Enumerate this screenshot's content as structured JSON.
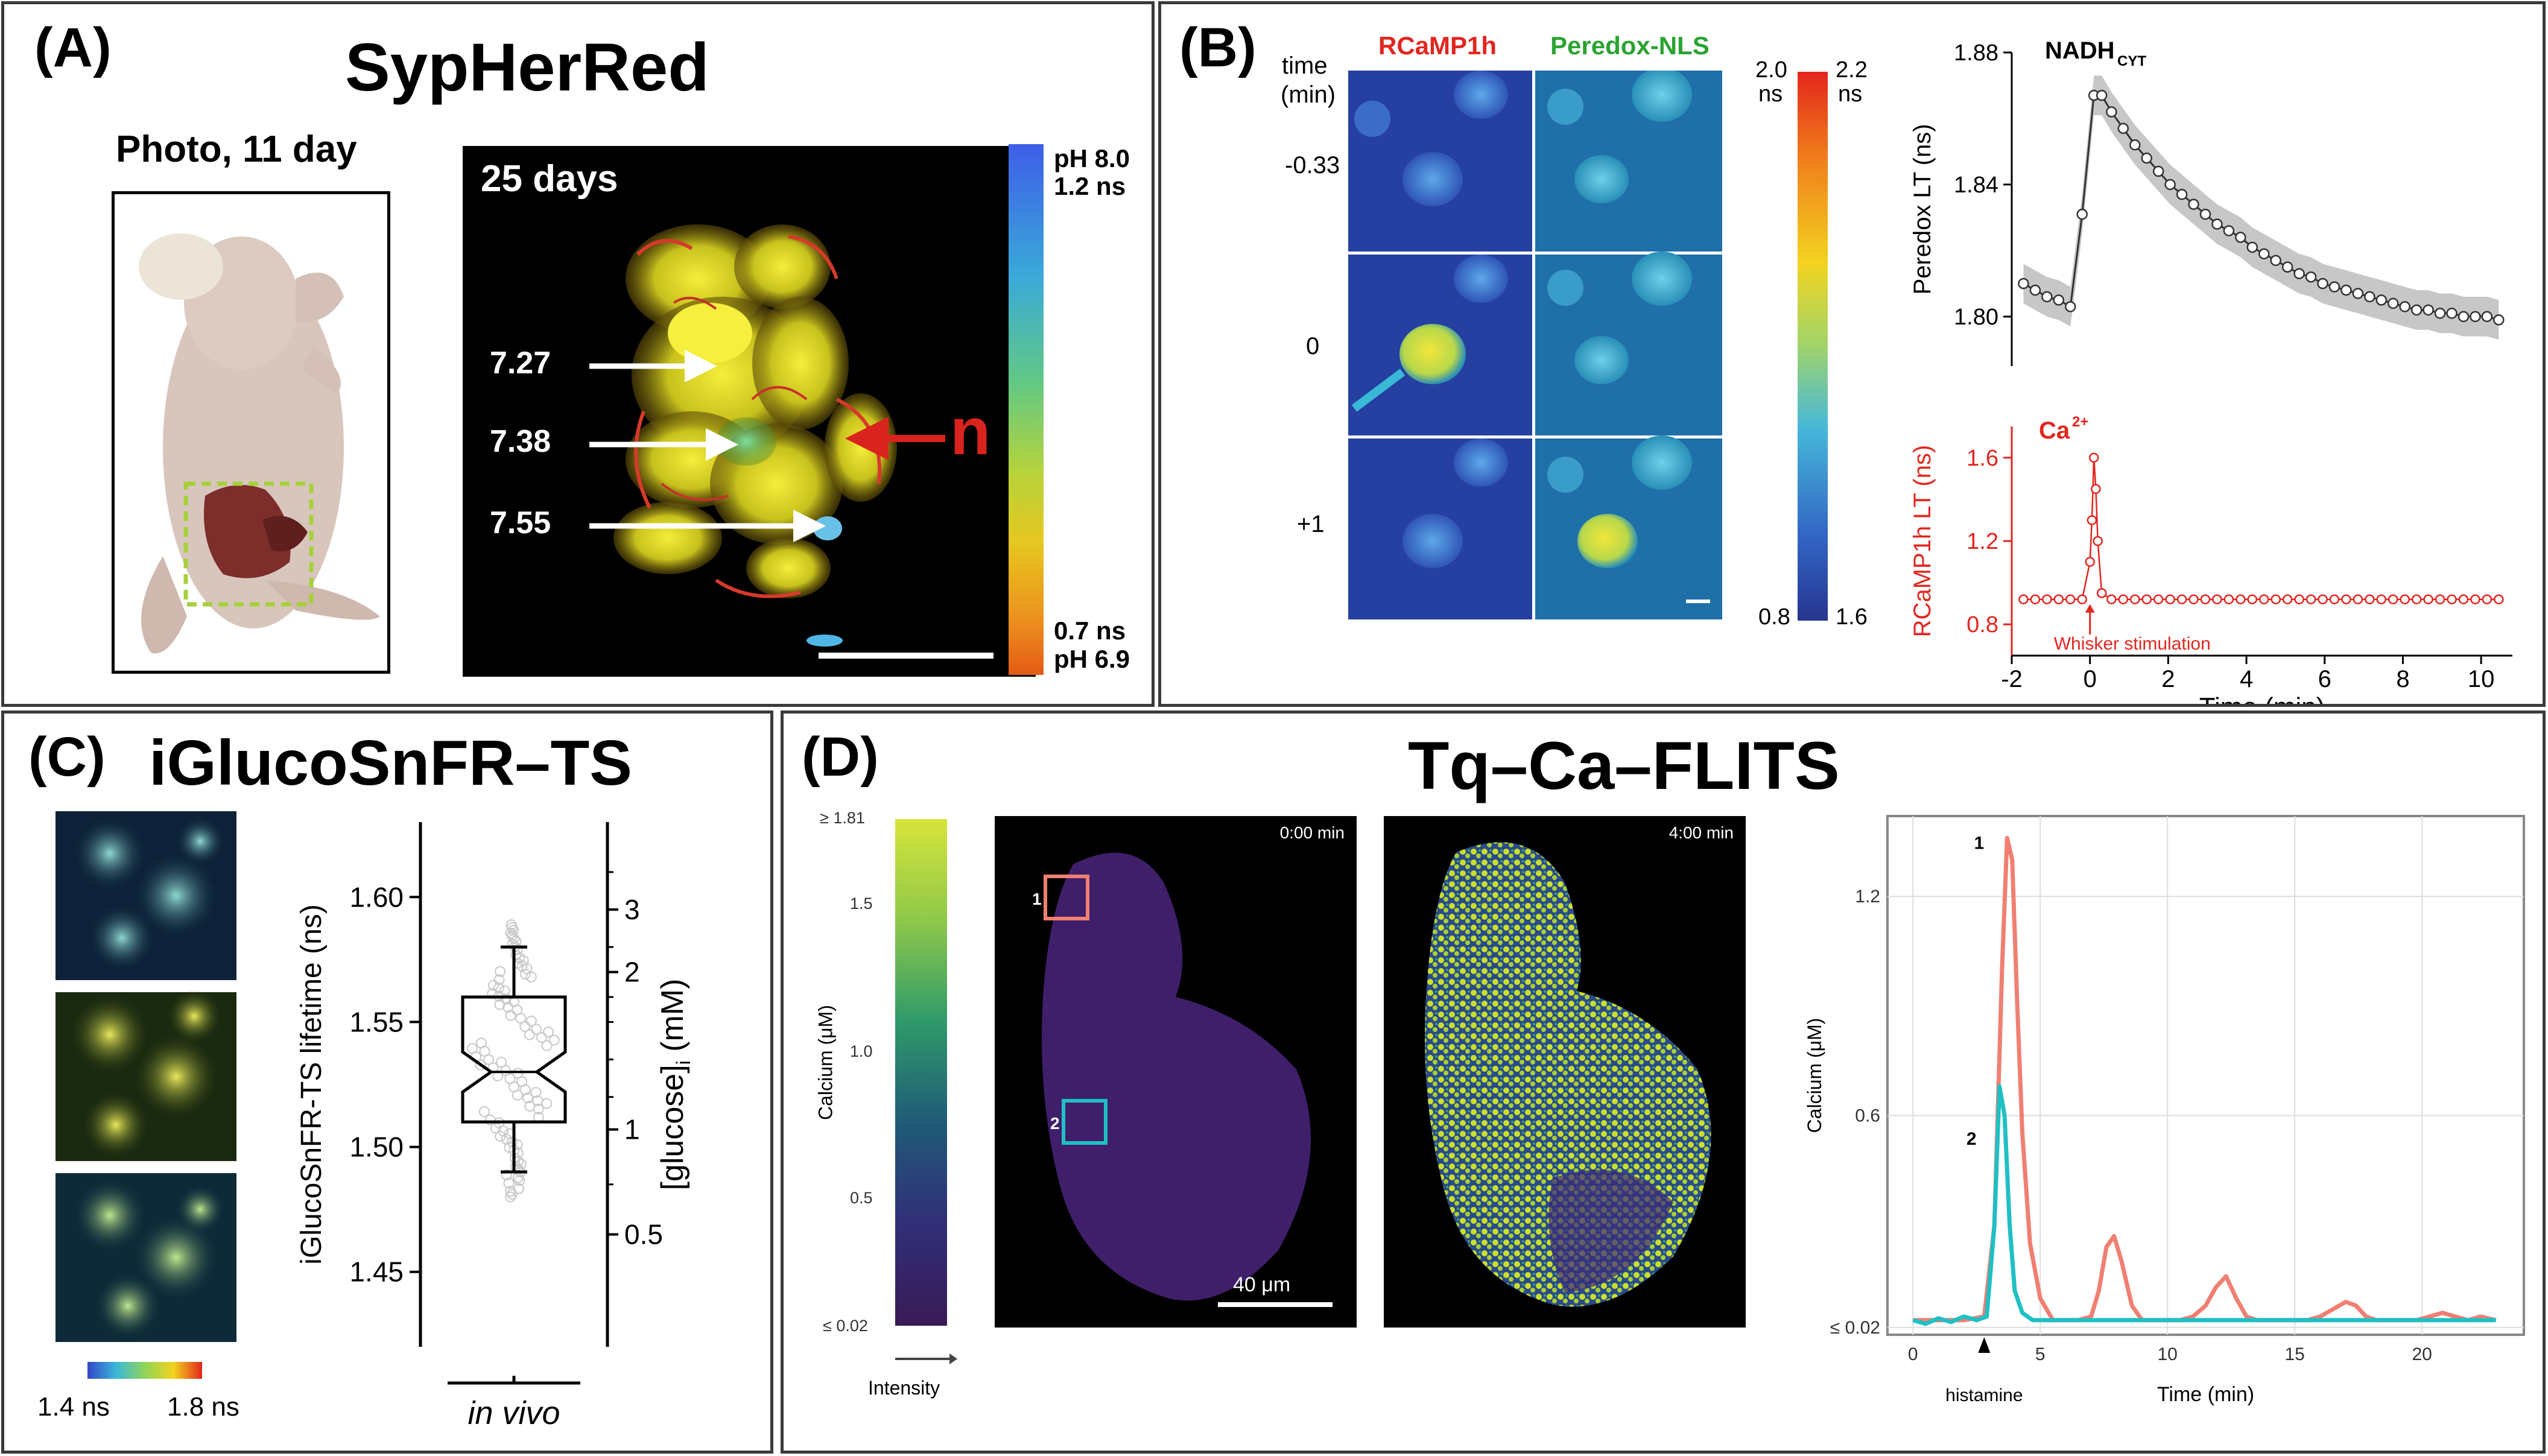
{
  "panelA": {
    "letter": "(A)",
    "title": "SypHerRed",
    "photo_caption": "Photo, 11 day",
    "image_label": "25 days",
    "values": [
      "7.27",
      "7.38",
      "7.55"
    ],
    "n_label": "n",
    "colorbar_top": [
      "pH 8.0",
      "1.2 ns"
    ],
    "colorbar_bottom": [
      "0.7 ns",
      "pH 6.9"
    ]
  },
  "panelB": {
    "letter": "(B)",
    "time_header": [
      "time",
      "(min)"
    ],
    "row_labels": [
      "-0.33",
      "0",
      "+1"
    ],
    "col_headers": [
      "RCaMP1h",
      "Peredox-NLS"
    ],
    "colorbar_top": [
      [
        "2.0",
        "ns"
      ],
      [
        "2.2",
        "ns"
      ]
    ],
    "colorbar_bottom": [
      "0.8",
      "1.6"
    ],
    "chart_data": [
      {
        "type": "line",
        "title": "NADH",
        "title_sub": "CYT",
        "ylabel": "Peredox LT (ns)",
        "yticks": [
          "1.80",
          "1.84",
          "1.88"
        ],
        "ylim": [
          1.785,
          1.88
        ],
        "xlim": [
          -2,
          10.8
        ],
        "x": [
          -1.7,
          -1.4,
          -1.1,
          -0.8,
          -0.5,
          -0.2,
          0.1,
          0.3,
          0.55,
          0.85,
          1.15,
          1.45,
          1.75,
          2.05,
          2.35,
          2.65,
          2.95,
          3.25,
          3.55,
          3.85,
          4.15,
          4.45,
          4.75,
          5.05,
          5.35,
          5.65,
          5.95,
          6.25,
          6.55,
          6.85,
          7.15,
          7.45,
          7.75,
          8.05,
          8.35,
          8.65,
          8.95,
          9.25,
          9.55,
          9.85,
          10.15,
          10.45
        ],
        "y": [
          1.81,
          1.808,
          1.806,
          1.805,
          1.803,
          1.831,
          1.867,
          1.867,
          1.862,
          1.857,
          1.852,
          1.848,
          1.844,
          1.84,
          1.837,
          1.834,
          1.831,
          1.828,
          1.826,
          1.824,
          1.821,
          1.819,
          1.817,
          1.815,
          1.813,
          1.812,
          1.81,
          1.809,
          1.808,
          1.807,
          1.806,
          1.805,
          1.804,
          1.803,
          1.802,
          1.802,
          1.801,
          1.801,
          1.8,
          1.8,
          1.8,
          1.799
        ]
      },
      {
        "type": "line",
        "title": "Ca",
        "title_sup": "2+",
        "ylabel": "RCaMP1h LT (ns)",
        "xlabel": "Time (min)",
        "yticks": [
          "0.8",
          "1.2",
          "1.6"
        ],
        "xticks": [
          "-2",
          "0",
          "2",
          "4",
          "6",
          "8",
          "10"
        ],
        "ylim": [
          0.65,
          1.75
        ],
        "xlim": [
          -2,
          10.8
        ],
        "annotation": "Whisker stimulation",
        "x": [
          -1.7,
          -1.4,
          -1.1,
          -0.8,
          -0.5,
          -0.2,
          0.0,
          0.05,
          0.1,
          0.15,
          0.2,
          0.3,
          0.55,
          0.85,
          1.15,
          1.45,
          1.75,
          2.05,
          2.35,
          2.65,
          2.95,
          3.25,
          3.55,
          3.85,
          4.15,
          4.45,
          4.75,
          5.05,
          5.35,
          5.65,
          5.95,
          6.25,
          6.55,
          6.85,
          7.15,
          7.45,
          7.75,
          8.05,
          8.35,
          8.65,
          8.95,
          9.25,
          9.55,
          9.85,
          10.15,
          10.45
        ],
        "y": [
          0.92,
          0.92,
          0.92,
          0.92,
          0.92,
          0.92,
          1.1,
          1.3,
          1.6,
          1.45,
          1.2,
          0.95,
          0.92,
          0.92,
          0.92,
          0.92,
          0.92,
          0.92,
          0.92,
          0.92,
          0.92,
          0.92,
          0.92,
          0.92,
          0.92,
          0.92,
          0.92,
          0.92,
          0.92,
          0.92,
          0.92,
          0.92,
          0.92,
          0.92,
          0.92,
          0.92,
          0.92,
          0.92,
          0.92,
          0.92,
          0.92,
          0.92,
          0.92,
          0.92,
          0.92,
          0.92
        ]
      }
    ]
  },
  "panelC": {
    "letter": "(C)",
    "title": "iGlucoSnFR–TS",
    "colorbar_labels": [
      "1.4 ns",
      "1.8 ns"
    ],
    "chart_data": {
      "type": "box",
      "ylabel": "iGlucoSnFR-TS lifetime (ns)",
      "ylabel2": "[glucose]",
      "ylabel2_sub": "i",
      "ylabel2_unit": "(mM)",
      "yticks": [
        "1.45",
        "1.50",
        "1.55",
        "1.60"
      ],
      "yticks2": [
        "0.5",
        "1",
        "2",
        "3"
      ],
      "ylim": [
        1.42,
        1.63
      ],
      "category": "in vivo",
      "whisker_low": 1.49,
      "q1": 1.51,
      "median": 1.53,
      "q3": 1.56,
      "whisker_high": 1.58,
      "notch": [
        1.522,
        1.538
      ]
    }
  },
  "panelD": {
    "letter": "(D)",
    "title": "Tq–Ca–FLITS",
    "colorbar_ticks": [
      "≥ 1.81",
      "1.5",
      "1.0",
      "0.5",
      "≤ 0.02"
    ],
    "colorbar_label": "Calcium (μM)",
    "intensity_label": "Intensity",
    "image1_time": "0:00 min",
    "image2_time": "4:00 min",
    "roi_labels": [
      "1",
      "2"
    ],
    "scalebar": "40 μm",
    "roi_colors": [
      "#f07f72",
      "#1fc0c4"
    ],
    "chart_data": {
      "type": "line",
      "xlabel": "Time (min)",
      "ylabel": "Calcium (μM)",
      "xticks": [
        "0",
        "5",
        "10",
        "15",
        "20"
      ],
      "yticks": [
        "≤ 0.02",
        "0.6",
        "1.2"
      ],
      "xlim": [
        -1,
        24
      ],
      "ylim": [
        0,
        1.42
      ],
      "annotation": "histamine",
      "series": [
        {
          "name": "1",
          "x": [
            0,
            1,
            2,
            2.8,
            3.2,
            3.5,
            3.7,
            3.9,
            4.1,
            4.3,
            4.6,
            5.0,
            5.5,
            6.0,
            6.5,
            7.0,
            7.3,
            7.6,
            7.9,
            8.2,
            8.6,
            9.0,
            9.5,
            10,
            10.5,
            11,
            11.5,
            11.9,
            12.3,
            12.7,
            13.1,
            13.5,
            14,
            14.5,
            15,
            15.5,
            16,
            16.5,
            17,
            17.4,
            17.8,
            18.2,
            18.7,
            19.2,
            19.8,
            20.3,
            20.8,
            21.3,
            21.8,
            22.3,
            22.9
          ],
          "y": [
            0.04,
            0.04,
            0.04,
            0.05,
            0.3,
            1.0,
            1.36,
            1.3,
            0.9,
            0.55,
            0.25,
            0.1,
            0.04,
            0.04,
            0.04,
            0.05,
            0.12,
            0.24,
            0.27,
            0.2,
            0.08,
            0.04,
            0.04,
            0.04,
            0.04,
            0.05,
            0.08,
            0.13,
            0.16,
            0.1,
            0.05,
            0.04,
            0.04,
            0.04,
            0.04,
            0.04,
            0.05,
            0.07,
            0.09,
            0.08,
            0.05,
            0.04,
            0.04,
            0.04,
            0.04,
            0.05,
            0.06,
            0.05,
            0.04,
            0.05,
            0.04
          ]
        },
        {
          "name": "2",
          "x": [
            0,
            0.5,
            1,
            1.5,
            2,
            2.5,
            2.9,
            3.2,
            3.4,
            3.6,
            3.8,
            4.0,
            4.3,
            4.7,
            5.2,
            6,
            7,
            8,
            9,
            10,
            11,
            12,
            13,
            14,
            15,
            16,
            17,
            18,
            19,
            20,
            21,
            22,
            22.9
          ],
          "y": [
            0.04,
            0.03,
            0.045,
            0.035,
            0.05,
            0.04,
            0.05,
            0.3,
            0.68,
            0.6,
            0.3,
            0.12,
            0.06,
            0.04,
            0.04,
            0.04,
            0.04,
            0.04,
            0.04,
            0.04,
            0.04,
            0.04,
            0.04,
            0.04,
            0.04,
            0.04,
            0.04,
            0.04,
            0.04,
            0.04,
            0.04,
            0.04,
            0.04
          ]
        }
      ]
    }
  }
}
